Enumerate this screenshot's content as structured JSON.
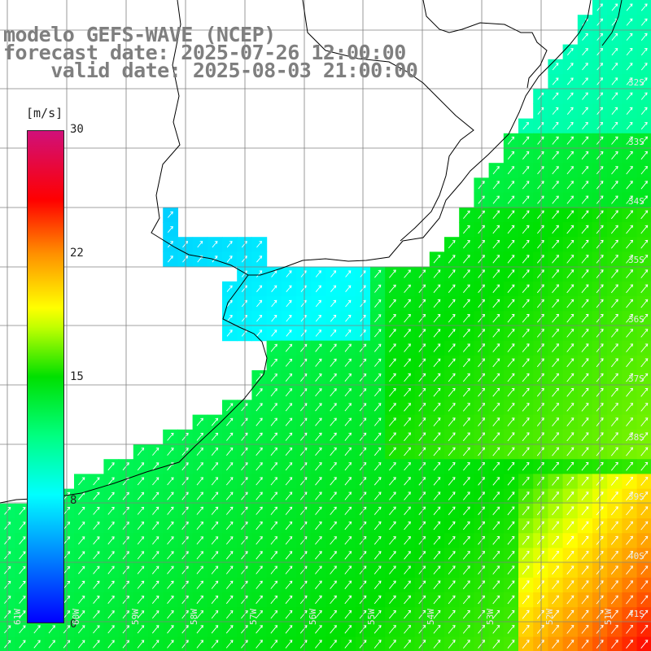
{
  "title": {
    "line1": "modelo GEFS-WAVE (NCEP)",
    "line2": "forecast date: 2025-07-26 12:00:00",
    "line3": "    valid date: 2025-08-03 21:00:00"
  },
  "colorbar": {
    "unit": "[m/s]",
    "ticks": [
      "30",
      "22",
      "15",
      "8",
      "0"
    ],
    "tick_values": [
      30,
      22,
      15,
      8,
      0
    ],
    "min": 0,
    "max": 30,
    "colors": [
      "#0000ff",
      "#0080ff",
      "#00ffff",
      "#00ff80",
      "#00e000",
      "#c0ff00",
      "#ffff00",
      "#ff9000",
      "#ff0000",
      "#d0107a"
    ]
  },
  "lat_labels": [
    "32S",
    "33S",
    "34S",
    "35S",
    "36S",
    "37S",
    "38S",
    "39S",
    "40S",
    "41S"
  ],
  "lon_labels": [
    "58W",
    "57W",
    "56W",
    "55W",
    "54W",
    "53W",
    "52W",
    "51W"
  ],
  "lon_labels_partial": [
    "61W",
    "60W",
    "59W"
  ],
  "map_colors": {
    "land": "#ffffff",
    "coast": "#000000",
    "grid": "#808080",
    "arrow": "#ffffff"
  }
}
